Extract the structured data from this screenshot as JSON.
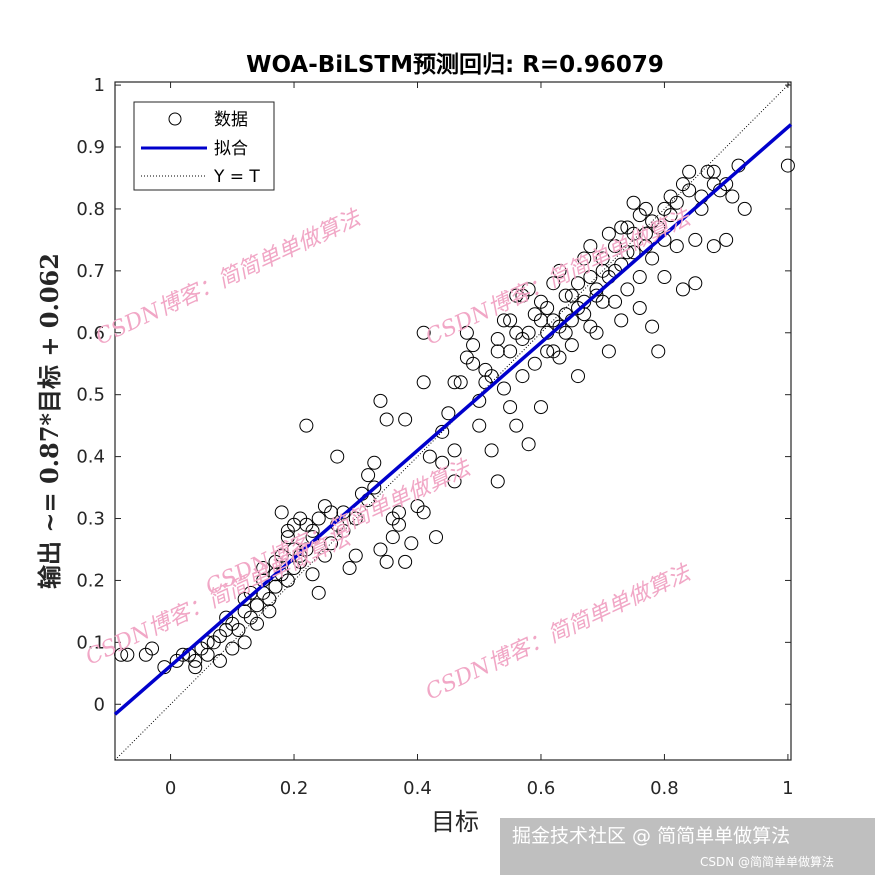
{
  "chart_data": {
    "type": "scatter",
    "title": "WOA-BiLSTM预测回归: R=0.96079",
    "xlabel": "目标",
    "ylabel": "输出 ~= 0.87*目标 + 0.062",
    "xlim": [
      -0.09,
      1.005
    ],
    "ylim": [
      -0.09,
      1.005
    ],
    "xticks": [
      "0",
      "0.2",
      "0.4",
      "0.6",
      "0.8",
      "1"
    ],
    "yticks": [
      "0",
      "0.1",
      "0.2",
      "0.3",
      "0.4",
      "0.5",
      "0.6",
      "0.7",
      "0.8",
      "0.9",
      "1"
    ],
    "legend": {
      "placement": "top-left",
      "entries": [
        "数据",
        "拟合",
        "Y = T"
      ]
    },
    "fit": {
      "slope": 0.87,
      "intercept": 0.062,
      "color": "#0000cc"
    },
    "identity_line": true,
    "grid": false,
    "points": [
      [
        -0.08,
        0.08
      ],
      [
        -0.07,
        0.08
      ],
      [
        -0.04,
        0.08
      ],
      [
        -0.03,
        0.09
      ],
      [
        -0.01,
        0.06
      ],
      [
        0.01,
        0.07
      ],
      [
        0.02,
        0.08
      ],
      [
        0.03,
        0.08
      ],
      [
        0.04,
        0.07
      ],
      [
        0.05,
        0.09
      ],
      [
        0.04,
        0.06
      ],
      [
        0.06,
        0.08
      ],
      [
        0.07,
        0.1
      ],
      [
        0.08,
        0.11
      ],
      [
        0.09,
        0.12
      ],
      [
        0.1,
        0.13
      ],
      [
        0.11,
        0.12
      ],
      [
        0.09,
        0.14
      ],
      [
        0.12,
        0.15
      ],
      [
        0.13,
        0.14
      ],
      [
        0.14,
        0.16
      ],
      [
        0.12,
        0.17
      ],
      [
        0.15,
        0.18
      ],
      [
        0.16,
        0.17
      ],
      [
        0.17,
        0.19
      ],
      [
        0.15,
        0.2
      ],
      [
        0.18,
        0.21
      ],
      [
        0.19,
        0.2
      ],
      [
        0.2,
        0.22
      ],
      [
        0.21,
        0.24
      ],
      [
        0.17,
        0.23
      ],
      [
        0.22,
        0.25
      ],
      [
        0.18,
        0.24
      ],
      [
        0.19,
        0.28
      ],
      [
        0.2,
        0.29
      ],
      [
        0.21,
        0.3
      ],
      [
        0.22,
        0.29
      ],
      [
        0.23,
        0.28
      ],
      [
        0.24,
        0.3
      ],
      [
        0.25,
        0.32
      ],
      [
        0.18,
        0.31
      ],
      [
        0.19,
        0.27
      ],
      [
        0.2,
        0.25
      ],
      [
        0.23,
        0.21
      ],
      [
        0.24,
        0.18
      ],
      [
        0.25,
        0.24
      ],
      [
        0.26,
        0.26
      ],
      [
        0.27,
        0.29
      ],
      [
        0.28,
        0.31
      ],
      [
        0.29,
        0.22
      ],
      [
        0.22,
        0.45
      ],
      [
        0.27,
        0.4
      ],
      [
        0.3,
        0.3
      ],
      [
        0.31,
        0.34
      ],
      [
        0.32,
        0.37
      ],
      [
        0.33,
        0.35
      ],
      [
        0.33,
        0.39
      ],
      [
        0.34,
        0.49
      ],
      [
        0.35,
        0.46
      ],
      [
        0.34,
        0.25
      ],
      [
        0.35,
        0.23
      ],
      [
        0.36,
        0.27
      ],
      [
        0.37,
        0.31
      ],
      [
        0.37,
        0.29
      ],
      [
        0.38,
        0.23
      ],
      [
        0.39,
        0.26
      ],
      [
        0.4,
        0.32
      ],
      [
        0.41,
        0.31
      ],
      [
        0.42,
        0.4
      ],
      [
        0.43,
        0.27
      ],
      [
        0.41,
        0.52
      ],
      [
        0.41,
        0.6
      ],
      [
        0.44,
        0.44
      ],
      [
        0.45,
        0.47
      ],
      [
        0.46,
        0.41
      ],
      [
        0.46,
        0.36
      ],
      [
        0.47,
        0.52
      ],
      [
        0.48,
        0.56
      ],
      [
        0.48,
        0.6
      ],
      [
        0.49,
        0.55
      ],
      [
        0.5,
        0.49
      ],
      [
        0.5,
        0.45
      ],
      [
        0.51,
        0.52
      ],
      [
        0.52,
        0.53
      ],
      [
        0.52,
        0.41
      ],
      [
        0.53,
        0.36
      ],
      [
        0.53,
        0.57
      ],
      [
        0.54,
        0.51
      ],
      [
        0.55,
        0.62
      ],
      [
        0.55,
        0.48
      ],
      [
        0.56,
        0.45
      ],
      [
        0.56,
        0.6
      ],
      [
        0.57,
        0.66
      ],
      [
        0.57,
        0.53
      ],
      [
        0.58,
        0.6
      ],
      [
        0.58,
        0.42
      ],
      [
        0.59,
        0.55
      ],
      [
        0.6,
        0.65
      ],
      [
        0.6,
        0.48
      ],
      [
        0.61,
        0.6
      ],
      [
        0.61,
        0.57
      ],
      [
        0.62,
        0.68
      ],
      [
        0.62,
        0.62
      ],
      [
        0.63,
        0.56
      ],
      [
        0.63,
        0.7
      ],
      [
        0.64,
        0.63
      ],
      [
        0.64,
        0.6
      ],
      [
        0.65,
        0.66
      ],
      [
        0.65,
        0.58
      ],
      [
        0.66,
        0.68
      ],
      [
        0.66,
        0.53
      ],
      [
        0.67,
        0.72
      ],
      [
        0.67,
        0.63
      ],
      [
        0.68,
        0.61
      ],
      [
        0.68,
        0.74
      ],
      [
        0.69,
        0.66
      ],
      [
        0.69,
        0.6
      ],
      [
        0.7,
        0.65
      ],
      [
        0.7,
        0.72
      ],
      [
        0.71,
        0.76
      ],
      [
        0.71,
        0.57
      ],
      [
        0.72,
        0.7
      ],
      [
        0.72,
        0.65
      ],
      [
        0.73,
        0.77
      ],
      [
        0.73,
        0.62
      ],
      [
        0.74,
        0.73
      ],
      [
        0.74,
        0.67
      ],
      [
        0.75,
        0.81
      ],
      [
        0.75,
        0.76
      ],
      [
        0.76,
        0.69
      ],
      [
        0.76,
        0.64
      ],
      [
        0.77,
        0.8
      ],
      [
        0.77,
        0.74
      ],
      [
        0.78,
        0.72
      ],
      [
        0.78,
        0.61
      ],
      [
        0.79,
        0.57
      ],
      [
        0.8,
        0.75
      ],
      [
        0.8,
        0.69
      ],
      [
        0.81,
        0.82
      ],
      [
        0.82,
        0.74
      ],
      [
        0.83,
        0.67
      ],
      [
        0.83,
        0.84
      ],
      [
        0.84,
        0.86
      ],
      [
        0.85,
        0.68
      ],
      [
        0.85,
        0.75
      ],
      [
        0.86,
        0.8
      ],
      [
        0.87,
        0.86
      ],
      [
        0.88,
        0.74
      ],
      [
        0.88,
        0.84
      ],
      [
        0.89,
        0.83
      ],
      [
        0.9,
        0.75
      ],
      [
        0.91,
        0.82
      ],
      [
        0.92,
        0.87
      ],
      [
        0.93,
        0.8
      ],
      [
        1.0,
        0.87
      ],
      [
        0.54,
        0.62
      ],
      [
        0.56,
        0.66
      ],
      [
        0.58,
        0.67
      ],
      [
        0.6,
        0.62
      ],
      [
        0.62,
        0.57
      ],
      [
        0.64,
        0.66
      ],
      [
        0.66,
        0.64
      ],
      [
        0.68,
        0.69
      ],
      [
        0.7,
        0.7
      ],
      [
        0.72,
        0.74
      ],
      [
        0.74,
        0.77
      ],
      [
        0.76,
        0.79
      ],
      [
        0.78,
        0.78
      ],
      [
        0.8,
        0.8
      ],
      [
        0.82,
        0.81
      ],
      [
        0.84,
        0.83
      ],
      [
        0.86,
        0.82
      ],
      [
        0.88,
        0.86
      ],
      [
        0.9,
        0.84
      ],
      [
        0.12,
        0.1
      ],
      [
        0.14,
        0.13
      ],
      [
        0.16,
        0.15
      ],
      [
        0.1,
        0.09
      ],
      [
        0.08,
        0.07
      ],
      [
        0.06,
        0.1
      ],
      [
        0.13,
        0.18
      ],
      [
        0.15,
        0.22
      ],
      [
        0.17,
        0.21
      ],
      [
        0.21,
        0.23
      ],
      [
        0.23,
        0.27
      ],
      [
        0.26,
        0.31
      ],
      [
        0.28,
        0.28
      ],
      [
        0.3,
        0.24
      ],
      [
        0.32,
        0.33
      ],
      [
        0.36,
        0.3
      ],
      [
        0.38,
        0.46
      ],
      [
        0.44,
        0.39
      ],
      [
        0.46,
        0.52
      ],
      [
        0.49,
        0.58
      ],
      [
        0.51,
        0.54
      ],
      [
        0.53,
        0.59
      ],
      [
        0.55,
        0.57
      ],
      [
        0.57,
        0.59
      ],
      [
        0.59,
        0.63
      ],
      [
        0.61,
        0.64
      ],
      [
        0.63,
        0.61
      ],
      [
        0.65,
        0.62
      ],
      [
        0.67,
        0.65
      ],
      [
        0.69,
        0.67
      ],
      [
        0.71,
        0.69
      ],
      [
        0.73,
        0.71
      ],
      [
        0.75,
        0.73
      ],
      [
        0.77,
        0.76
      ],
      [
        0.79,
        0.77
      ],
      [
        0.81,
        0.79
      ]
    ]
  },
  "watermarks": [
    "CSDN博客：简简单单做算法",
    "CSDN博客：简简单单做算法",
    "CSDN博客：简简单单做算法",
    "CSDN博客：简简单单做算法",
    "CSDN博客：简简单单做算法"
  ],
  "footer": {
    "platform": "掘金技术社区 @ 简简单单做算法",
    "source": "CSDN @简简单单做算法"
  }
}
